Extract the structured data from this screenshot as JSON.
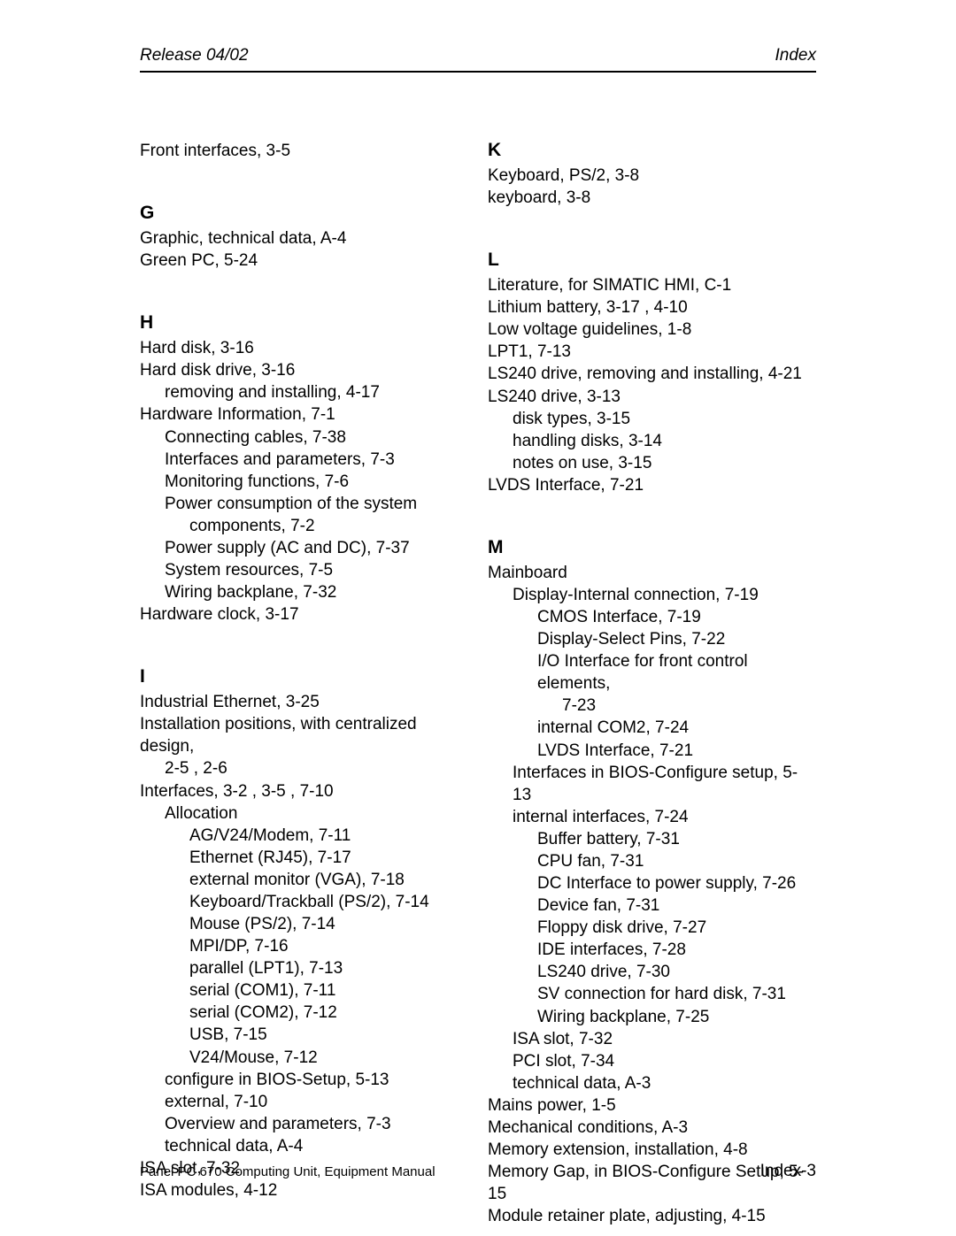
{
  "header": {
    "left": "Release 04/02",
    "right": "Index"
  },
  "footer": {
    "left": "Panel PC 670 Computing Unit, Equipment Manual",
    "right": "Index-3"
  },
  "left_col": [
    {
      "t": "Front interfaces, 3-5",
      "lvl": 0
    },
    {
      "letter": "G"
    },
    {
      "t": "Graphic, technical data, A-4",
      "lvl": 0
    },
    {
      "t": "Green PC, 5-24",
      "lvl": 0
    },
    {
      "letter": "H"
    },
    {
      "t": "Hard disk, 3-16",
      "lvl": 0
    },
    {
      "t": "Hard disk drive, 3-16",
      "lvl": 0
    },
    {
      "t": "removing and installing, 4-17",
      "lvl": 1
    },
    {
      "t": "Hardware Information, 7-1",
      "lvl": 0
    },
    {
      "t": "Connecting cables, 7-38",
      "lvl": 1
    },
    {
      "t": "Interfaces and parameters, 7-3",
      "lvl": 1
    },
    {
      "t": "Monitoring functions, 7-6",
      "lvl": 1
    },
    {
      "t": "Power consumption of the system",
      "lvl": 1
    },
    {
      "t": "components, 7-2",
      "lvl": 2
    },
    {
      "t": "Power supply (AC and DC), 7-37",
      "lvl": 1
    },
    {
      "t": "System resources, 7-5",
      "lvl": 1
    },
    {
      "t": "Wiring backplane, 7-32",
      "lvl": 1
    },
    {
      "t": "Hardware clock, 3-17",
      "lvl": 0
    },
    {
      "letter": "I"
    },
    {
      "t": "Industrial Ethernet, 3-25",
      "lvl": 0
    },
    {
      "t": "Installation positions, with centralized design,",
      "lvl": 0
    },
    {
      "t": "2-5 , 2-6",
      "lvl": 1
    },
    {
      "t": "Interfaces, 3-2 , 3-5 , 7-10",
      "lvl": 0
    },
    {
      "t": "Allocation",
      "lvl": 1
    },
    {
      "t": "AG/V24/Modem, 7-11",
      "lvl": 2
    },
    {
      "t": "Ethernet (RJ45), 7-17",
      "lvl": 2
    },
    {
      "t": "external monitor (VGA), 7-18",
      "lvl": 2
    },
    {
      "t": "Keyboard/Trackball (PS/2), 7-14",
      "lvl": 2
    },
    {
      "t": "Mouse (PS/2), 7-14",
      "lvl": 2
    },
    {
      "t": "MPI/DP, 7-16",
      "lvl": 2
    },
    {
      "t": "parallel (LPT1), 7-13",
      "lvl": 2
    },
    {
      "t": "serial (COM1), 7-11",
      "lvl": 2
    },
    {
      "t": "serial (COM2), 7-12",
      "lvl": 2
    },
    {
      "t": "USB, 7-15",
      "lvl": 2
    },
    {
      "t": "V24/Mouse, 7-12",
      "lvl": 2
    },
    {
      "t": "configure in BIOS-Setup, 5-13",
      "lvl": 1
    },
    {
      "t": "external, 7-10",
      "lvl": 1
    },
    {
      "t": "Overview and parameters, 7-3",
      "lvl": 1
    },
    {
      "t": "technical data, A-4",
      "lvl": 1
    },
    {
      "t": "ISA slot, 7-32",
      "lvl": 0
    },
    {
      "t": "ISA modules, 4-12",
      "lvl": 0
    }
  ],
  "right_col": [
    {
      "letter": "K"
    },
    {
      "t": "Keyboard, PS/2, 3-8",
      "lvl": 0
    },
    {
      "t": "keyboard, 3-8",
      "lvl": 0
    },
    {
      "letter": "L"
    },
    {
      "t": "Literature, for SIMATIC HMI, C-1",
      "lvl": 0
    },
    {
      "t": "Lithium battery, 3-17 , 4-10",
      "lvl": 0
    },
    {
      "t": "Low voltage guidelines, 1-8",
      "lvl": 0
    },
    {
      "t": "LPT1, 7-13",
      "lvl": 0
    },
    {
      "t": "LS240 drive, removing and installing, 4-21",
      "lvl": 0
    },
    {
      "t": "LS240 drive, 3-13",
      "lvl": 0
    },
    {
      "t": "disk types, 3-15",
      "lvl": 1
    },
    {
      "t": "handling disks, 3-14",
      "lvl": 1
    },
    {
      "t": "notes on use, 3-15",
      "lvl": 1
    },
    {
      "t": "LVDS Interface, 7-21",
      "lvl": 0
    },
    {
      "letter": "M"
    },
    {
      "t": "Mainboard",
      "lvl": 0
    },
    {
      "t": "Display-Internal connection, 7-19",
      "lvl": 1
    },
    {
      "t": "CMOS Interface, 7-19",
      "lvl": 2
    },
    {
      "t": "Display-Select Pins, 7-22",
      "lvl": 2
    },
    {
      "t": "I/O Interface for front control elements,",
      "lvl": 2
    },
    {
      "t": "7-23",
      "lvl": 3
    },
    {
      "t": "internal COM2, 7-24",
      "lvl": 2
    },
    {
      "t": "LVDS Interface, 7-21",
      "lvl": 2
    },
    {
      "t": "Interfaces in BIOS-Configure setup, 5-13",
      "lvl": 1
    },
    {
      "t": "internal interfaces, 7-24",
      "lvl": 1
    },
    {
      "t": "Buffer battery, 7-31",
      "lvl": 2
    },
    {
      "t": "CPU fan, 7-31",
      "lvl": 2
    },
    {
      "t": "DC Interface to power supply, 7-26",
      "lvl": 2
    },
    {
      "t": "Device fan, 7-31",
      "lvl": 2
    },
    {
      "t": "Floppy disk drive, 7-27",
      "lvl": 2
    },
    {
      "t": "IDE interfaces, 7-28",
      "lvl": 2
    },
    {
      "t": "LS240 drive, 7-30",
      "lvl": 2
    },
    {
      "t": "SV connection for hard disk, 7-31",
      "lvl": 2
    },
    {
      "t": "Wiring backplane, 7-25",
      "lvl": 2
    },
    {
      "t": "ISA slot, 7-32",
      "lvl": 1
    },
    {
      "t": "PCI slot, 7-34",
      "lvl": 1
    },
    {
      "t": "technical data, A-3",
      "lvl": 1
    },
    {
      "t": "Mains power, 1-5",
      "lvl": 0
    },
    {
      "t": "Mechanical conditions, A-3",
      "lvl": 0
    },
    {
      "t": "Memory extension, installation, 4-8",
      "lvl": 0
    },
    {
      "t": "Memory Gap, in BIOS-Configure Setup, 5-15",
      "lvl": 0
    },
    {
      "t": "Module retainer plate, adjusting, 4-15",
      "lvl": 0
    }
  ]
}
